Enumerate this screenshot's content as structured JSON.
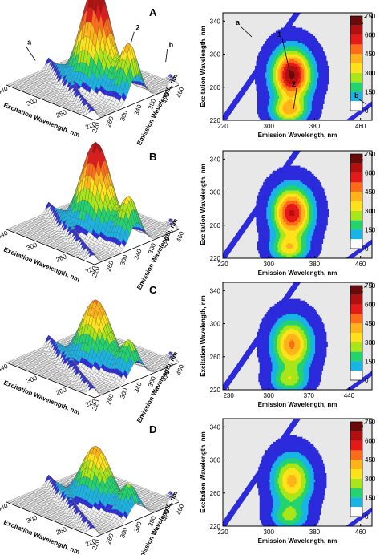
{
  "figure": {
    "colors": {
      "bg": "#e8e8e8",
      "levels": [
        "#ffffff",
        "#2b2bdc",
        "#18b4e6",
        "#22d36e",
        "#a8e619",
        "#ffe21a",
        "#ffb319",
        "#ff6b19",
        "#e61919",
        "#b40f0f",
        "#6a0b0b"
      ]
    }
  },
  "chart_data": [
    {
      "type": "surface",
      "label": "A",
      "xlabel": "Excitation Wavelength, nm",
      "ylabel": "Emission Wavelength, nm",
      "xticks": [
        "220",
        "260",
        "300",
        "340"
      ],
      "yticks": [
        "220",
        "260",
        "300",
        "340",
        "380",
        "420",
        "460"
      ],
      "peaks": [
        {
          "name": "1",
          "ex": 275,
          "em": 340,
          "intensity": 750
        },
        {
          "name": "2",
          "ex": 230,
          "em": 340,
          "intensity": 380
        },
        {
          "name": "a",
          "ex": 330,
          "em": 300,
          "intensity": 60
        },
        {
          "name": "b",
          "ex": 240,
          "em": 460,
          "intensity": 60
        }
      ],
      "annotations": [
        "1",
        "2",
        "a",
        "b"
      ]
    },
    {
      "type": "contour",
      "label": "A´",
      "xlabel": "Emission Wavelength, nm",
      "ylabel": "Excitation Wavelength, nm",
      "xticks": [
        "220",
        "300",
        "380",
        "460"
      ],
      "yticks": [
        "220",
        "260",
        "300",
        "340"
      ],
      "xlim": [
        220,
        480
      ],
      "ylim": [
        220,
        350
      ],
      "levels": [
        0,
        75,
        150,
        225,
        300,
        375,
        450,
        525,
        600,
        675,
        750
      ],
      "colorbar_ticks": [
        "0",
        "150",
        "300",
        "450",
        "600",
        "750"
      ],
      "peaks": [
        {
          "name": "1",
          "em": 340,
          "ex": 275,
          "intensity": 700
        },
        {
          "name": "2",
          "em": 335,
          "ex": 232,
          "intensity": 380
        }
      ],
      "annotations": [
        "1",
        "2",
        "a",
        "b"
      ]
    },
    {
      "type": "surface",
      "label": "B",
      "xlabel": "Excitation Wavelength, nm",
      "ylabel": "Emission Wavelength, nm",
      "xticks": [
        "220",
        "260",
        "300",
        "340"
      ],
      "yticks": [
        "220",
        "260",
        "300",
        "340",
        "380",
        "420",
        "460"
      ],
      "peaks": [
        {
          "ex": 275,
          "em": 340,
          "intensity": 650
        },
        {
          "ex": 230,
          "em": 340,
          "intensity": 320
        }
      ]
    },
    {
      "type": "contour",
      "label": "B´",
      "xlabel": "Emission Wavelength, nm",
      "ylabel": "Excitation Wavelength, nm",
      "xticks": [
        "220",
        "300",
        "380",
        "460"
      ],
      "yticks": [
        "220",
        "260",
        "300",
        "340"
      ],
      "xlim": [
        220,
        480
      ],
      "ylim": [
        220,
        350
      ],
      "levels": [
        0,
        75,
        150,
        225,
        300,
        375,
        450,
        525,
        600,
        675,
        750
      ],
      "colorbar_ticks": [
        "0",
        "150",
        "300",
        "450",
        "600",
        "750"
      ],
      "peaks": [
        {
          "em": 340,
          "ex": 275,
          "intensity": 620
        },
        {
          "em": 335,
          "ex": 232,
          "intensity": 330
        }
      ]
    },
    {
      "type": "surface",
      "label": "C",
      "xlabel": "Excitation Wavelength, nm",
      "ylabel": "Emission Wavelength, nm",
      "xticks": [
        "220",
        "260",
        "300",
        "340"
      ],
      "yticks": [
        "220",
        "260",
        "300",
        "340",
        "380",
        "420",
        "460"
      ],
      "peaks": [
        {
          "ex": 275,
          "em": 340,
          "intensity": 470
        },
        {
          "ex": 230,
          "em": 340,
          "intensity": 250
        }
      ]
    },
    {
      "type": "contour",
      "label": "C´",
      "xlabel": "Emission Wavelength, nm",
      "ylabel": "Excitation Wavelength, nm",
      "xticks": [
        "230",
        "300",
        "370",
        "440"
      ],
      "yticks": [
        "220",
        "260",
        "300",
        "340"
      ],
      "xlim": [
        220,
        480
      ],
      "ylim": [
        220,
        350
      ],
      "levels": [
        0,
        75,
        150,
        225,
        300,
        375,
        450,
        525,
        600,
        675,
        750
      ],
      "colorbar_ticks": [
        "0",
        "150",
        "300",
        "450",
        "600",
        "750"
      ],
      "peaks": [
        {
          "em": 340,
          "ex": 275,
          "intensity": 470
        },
        {
          "em": 335,
          "ex": 232,
          "intensity": 260
        }
      ]
    },
    {
      "type": "surface",
      "label": "D",
      "xlabel": "Excitation Wavelength, nm",
      "ylabel": "Emission Wavelength, nm",
      "xticks": [
        "220",
        "260",
        "300",
        "340"
      ],
      "yticks": [
        "220",
        "260",
        "300",
        "340",
        "380",
        "420",
        "460"
      ],
      "peaks": [
        {
          "ex": 275,
          "em": 340,
          "intensity": 420
        },
        {
          "ex": 230,
          "em": 340,
          "intensity": 220
        }
      ]
    },
    {
      "type": "contour",
      "label": "D´",
      "xlabel": "Emission Wavelength, nm",
      "ylabel": "Excitation Wavelength, nm",
      "xticks": [
        "220",
        "300",
        "380",
        "460"
      ],
      "yticks": [
        "220",
        "260",
        "300",
        "340"
      ],
      "xlim": [
        220,
        480
      ],
      "ylim": [
        220,
        350
      ],
      "levels": [
        0,
        75,
        150,
        225,
        300,
        375,
        450,
        525,
        600,
        675,
        750
      ],
      "colorbar_ticks": [
        "0",
        "150",
        "300",
        "450",
        "600",
        "750"
      ],
      "peaks": [
        {
          "em": 340,
          "ex": 275,
          "intensity": 410
        },
        {
          "em": 335,
          "ex": 232,
          "intensity": 230
        }
      ]
    }
  ]
}
